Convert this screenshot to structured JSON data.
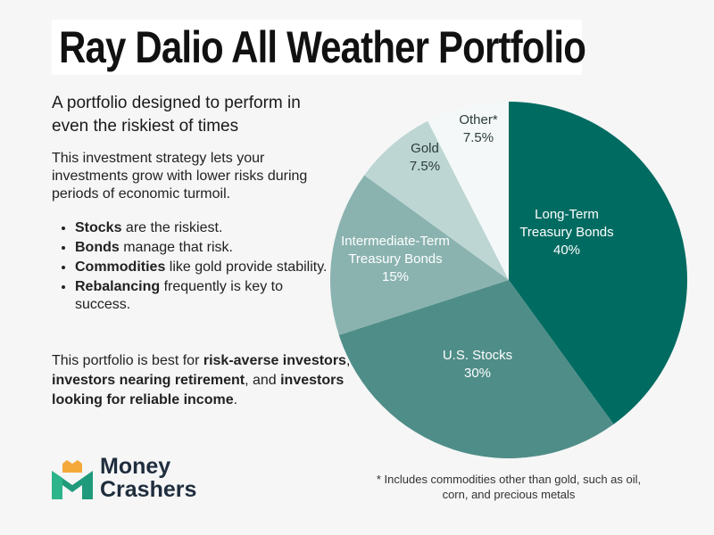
{
  "title": "Ray Dalio All Weather Portfolio",
  "subtitle": "A portfolio designed to perform in even the riskiest of times",
  "intro": "This investment strategy lets your investments grow with lower risks during periods of economic turmoil.",
  "bullets": [
    {
      "bold": "Stocks",
      "rest": " are the riskiest."
    },
    {
      "bold": "Bonds",
      "rest": " manage that risk."
    },
    {
      "bold": "Commodities",
      "rest": " like gold provide stability."
    },
    {
      "bold": "Rebalancing",
      "rest": " frequently is key to success."
    }
  ],
  "outro": {
    "p1": "This portfolio is best for ",
    "b1": "risk-averse investors",
    "p2": ", ",
    "b2": "investors nearing retirement",
    "p3": ", and ",
    "b3": "investors looking for reliable income",
    "p4": "."
  },
  "footnote": "* Includes commodities other than gold, such as oil, corn, and precious metals",
  "logo": {
    "line1": "Money",
    "line2": "Crashers"
  },
  "chart_data": {
    "type": "pie",
    "title": "Ray Dalio All Weather Portfolio",
    "slices": [
      {
        "label": "Long-Term Treasury Bonds",
        "lines": [
          "Long-Term",
          "Treasury Bonds",
          "40%"
        ],
        "value": 40,
        "color": "#006b61",
        "text_color": "#ffffff"
      },
      {
        "label": "U.S. Stocks",
        "lines": [
          "U.S. Stocks",
          "30%"
        ],
        "value": 30,
        "color": "#4f8d88",
        "text_color": "#ffffff"
      },
      {
        "label": "Intermediate-Term Treasury Bonds",
        "lines": [
          "Intermediate-Term",
          "Treasury Bonds",
          "15%"
        ],
        "value": 15,
        "color": "#8ab3b0",
        "text_color": "#ffffff"
      },
      {
        "label": "Gold",
        "lines": [
          "Gold",
          "7.5%"
        ],
        "value": 7.5,
        "color": "#bdd6d4",
        "text_color": "#2b3b3a"
      },
      {
        "label": "Other*",
        "lines": [
          "Other*",
          "7.5%"
        ],
        "value": 7.5,
        "color": "#f4f8f8",
        "text_color": "#2b3b3a"
      }
    ]
  }
}
